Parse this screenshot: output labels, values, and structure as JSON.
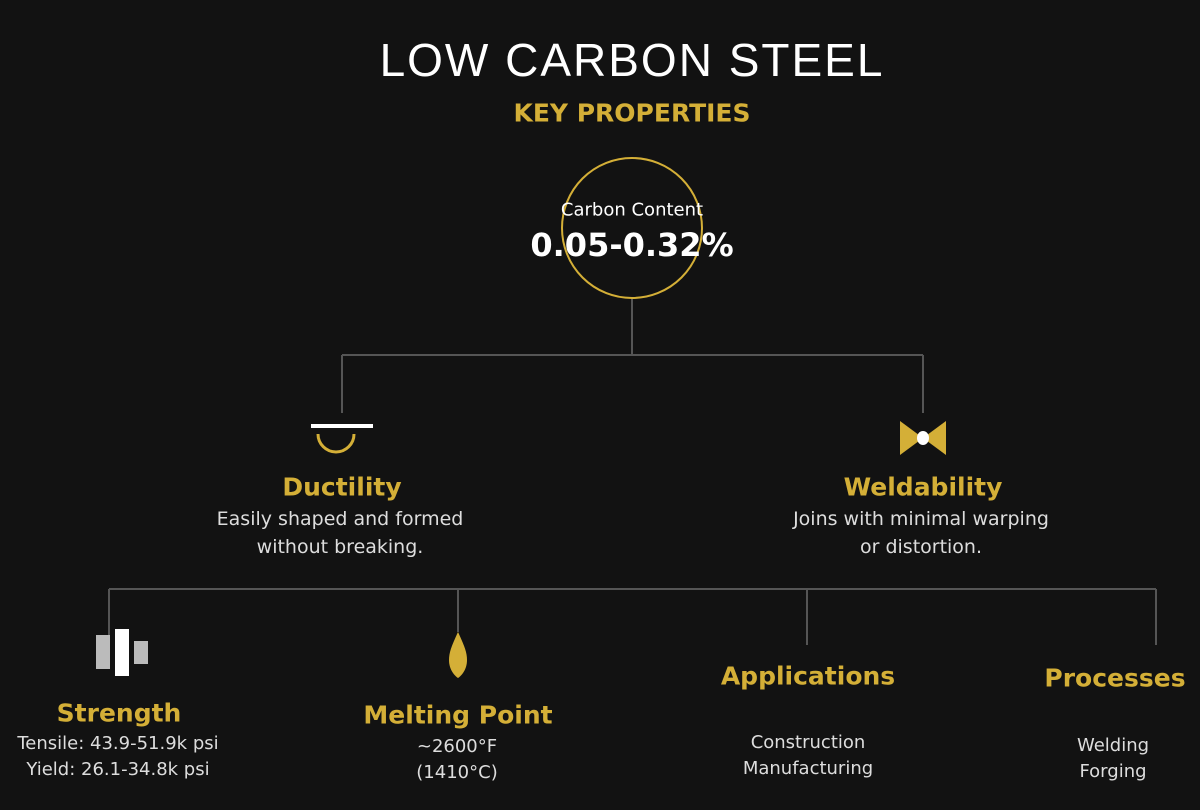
{
  "title": "LOW CARBON STEEL",
  "subtitle": "KEY PROPERTIES",
  "center": {
    "label": "Carbon Content",
    "value": "0.05-0.32%"
  },
  "colors": {
    "accent": "#d4af37",
    "background": "#121212",
    "connector": "#555555"
  },
  "properties": [
    {
      "name": "Ductility",
      "icon": "bend-icon",
      "lines": [
        "Easily shaped and formed",
        "without breaking."
      ]
    },
    {
      "name": "Weldability",
      "icon": "bowtie-weld-icon",
      "lines": [
        "Joins with minimal warping",
        "or distortion."
      ]
    }
  ],
  "details": [
    {
      "name": "Strength",
      "icon": "bars-icon",
      "lines": [
        "Tensile: 43.9-51.9k psi",
        "Yield: 26.1-34.8k psi"
      ]
    },
    {
      "name": "Melting Point",
      "icon": "flame-icon",
      "lines": [
        "~2600°F",
        "(1410°C)"
      ]
    },
    {
      "name": "Applications",
      "lines": [
        "Construction",
        "Manufacturing"
      ]
    },
    {
      "name": "Processes",
      "lines": [
        "Welding",
        "Forging"
      ]
    }
  ]
}
